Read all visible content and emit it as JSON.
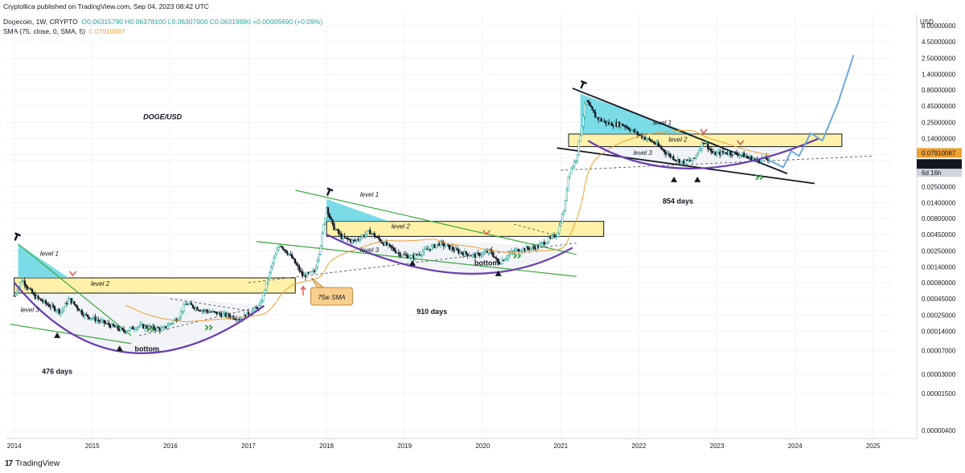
{
  "header": {
    "published": "Cryptollica published on TradingView.com, Sep 04, 2023 08:42 UTC",
    "symbol": "Dogecoin, 1W, CRYPTO",
    "ohlc": "O0.06315790 H0.06378100 L0.06307900 C0.06319880 +0.00005690 (+0.09%)",
    "sma_label": "SMA (75, close, 0, SMA, 5)",
    "sma_value": "0.07910087"
  },
  "footer": {
    "brand": "TradingView"
  },
  "colors": {
    "up": "#26a69a",
    "down": "#131722",
    "sma": "#f0a030",
    "cup": "#6a3db0",
    "level_band": "#fff2a8",
    "triangle": "#4fd0e0",
    "trend_green": "#3aa63a",
    "projection": "#6fa8dc",
    "price_tag": "#131722",
    "sma_tag": "#f0a030"
  },
  "chart_data": {
    "type": "line",
    "title": "DOGE/USD",
    "xlabel": "",
    "ylabel": "",
    "y_scale": "log",
    "y_unit": "USD",
    "x_ticks": [
      "2014",
      "2015",
      "2016",
      "2017",
      "2018",
      "2019",
      "2020",
      "2021",
      "2022",
      "2023",
      "2024",
      "2025"
    ],
    "y_ticks": [
      "8.00000000",
      "4.50000000",
      "2.50000000",
      "1.40000000",
      "0.80000000",
      "0.45000000",
      "0.25000000",
      "0.14000000",
      "0.07910087",
      "0.06319880",
      "0.02500000",
      "0.01400000",
      "0.00800000",
      "0.00450000",
      "0.00250000",
      "0.00140000",
      "0.00080000",
      "0.00045000",
      "0.00025000",
      "0.00014000",
      "0.00007000",
      "0.00003000",
      "0.00001500",
      "0.00000400"
    ],
    "price_tags": [
      {
        "value": "0.07910087",
        "kind": "sma"
      },
      {
        "value": "0.06319880",
        "kind": "price",
        "countdown": "6d 16h"
      }
    ],
    "series": [
      {
        "name": "Dogecoin, 1W",
        "points": [
          [
            "2014.00",
            0.0005
          ],
          [
            "2014.10",
            0.0009
          ],
          [
            "2014.25",
            0.0005
          ],
          [
            "2014.45",
            0.00035
          ],
          [
            "2014.60",
            0.00028
          ],
          [
            "2014.70",
            0.00045
          ],
          [
            "2014.90",
            0.00025
          ],
          [
            "2015.20",
            0.00018
          ],
          [
            "2015.40",
            0.00014
          ],
          [
            "2015.60",
            0.00017
          ],
          [
            "2015.90",
            0.00015
          ],
          [
            "2016.10",
            0.00023
          ],
          [
            "2016.20",
            0.00038
          ],
          [
            "2016.40",
            0.0003
          ],
          [
            "2016.70",
            0.00025
          ],
          [
            "2016.90",
            0.00022
          ],
          [
            "2017.15",
            0.00035
          ],
          [
            "2017.30",
            0.0015
          ],
          [
            "2017.40",
            0.0032
          ],
          [
            "2017.55",
            0.002
          ],
          [
            "2017.70",
            0.001
          ],
          [
            "2017.85",
            0.0012
          ],
          [
            "2017.92",
            0.003
          ],
          [
            "2018.00",
            0.012
          ],
          [
            "2018.08",
            0.006
          ],
          [
            "2018.20",
            0.004
          ],
          [
            "2018.35",
            0.0035
          ],
          [
            "2018.55",
            0.005
          ],
          [
            "2018.70",
            0.0035
          ],
          [
            "2018.95",
            0.0022
          ],
          [
            "2019.10",
            0.002
          ],
          [
            "2019.45",
            0.0033
          ],
          [
            "2019.70",
            0.0024
          ],
          [
            "2019.90",
            0.0021
          ],
          [
            "2020.10",
            0.0025
          ],
          [
            "2020.20",
            0.0016
          ],
          [
            "2020.40",
            0.0025
          ],
          [
            "2020.70",
            0.0029
          ],
          [
            "2020.95",
            0.0045
          ],
          [
            "2021.05",
            0.012
          ],
          [
            "2021.10",
            0.04
          ],
          [
            "2021.20",
            0.07
          ],
          [
            "2021.32",
            0.55
          ],
          [
            "2021.45",
            0.3
          ],
          [
            "2021.60",
            0.24
          ],
          [
            "2021.80",
            0.23
          ],
          [
            "2022.00",
            0.16
          ],
          [
            "2022.20",
            0.12
          ],
          [
            "2022.40",
            0.075
          ],
          [
            "2022.55",
            0.06
          ],
          [
            "2022.70",
            0.065
          ],
          [
            "2022.83",
            0.13
          ],
          [
            "2022.95",
            0.08
          ],
          [
            "2023.10",
            0.085
          ],
          [
            "2023.30",
            0.08
          ],
          [
            "2023.50",
            0.065
          ],
          [
            "2023.60",
            0.07
          ],
          [
            "2023.68",
            0.0632
          ]
        ]
      }
    ],
    "annotations": [
      {
        "text": "level 1"
      },
      {
        "text": "level 2"
      },
      {
        "text": "level 3"
      },
      {
        "text": "level 1"
      },
      {
        "text": "level 2"
      },
      {
        "text": "level 3"
      },
      {
        "text": "level 1"
      },
      {
        "text": "level 2"
      },
      {
        "text": "level 3"
      },
      {
        "text": "bottom"
      },
      {
        "text": "bottom"
      },
      {
        "text": "476 days"
      },
      {
        "text": "910 days"
      },
      {
        "text": "854 days"
      },
      {
        "text": "75w SMA"
      }
    ],
    "grid": true,
    "legend": "top-left"
  }
}
